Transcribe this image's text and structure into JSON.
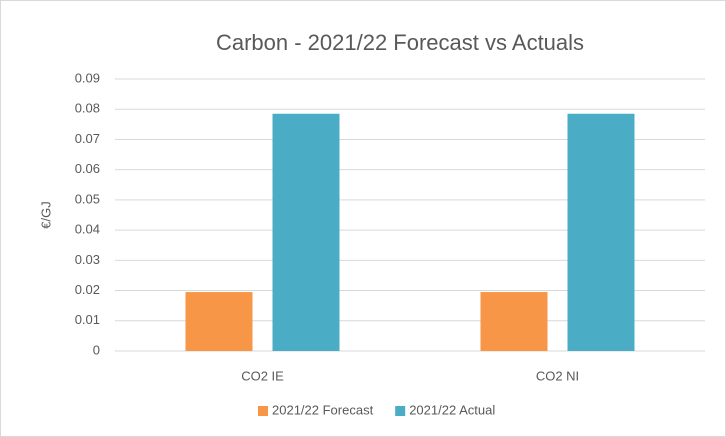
{
  "chart_data": {
    "type": "bar",
    "title": "Carbon - 2021/22 Forecast vs Actuals",
    "ylabel": "€/GJ",
    "categories": [
      "CO2 IE",
      "CO2 NI"
    ],
    "series": [
      {
        "name": "2021/22 Forecast",
        "color": "#f79646",
        "values": [
          0.0195,
          0.0195
        ]
      },
      {
        "name": "2021/22 Actual",
        "color": "#4bacc6",
        "values": [
          0.0785,
          0.0785
        ]
      }
    ],
    "ylim": [
      0,
      0.09
    ],
    "yticks": [
      0,
      0.01,
      0.02,
      0.03,
      0.04,
      0.05,
      0.06,
      0.07,
      0.08,
      0.09
    ],
    "grid": true,
    "legend": "bottom"
  }
}
